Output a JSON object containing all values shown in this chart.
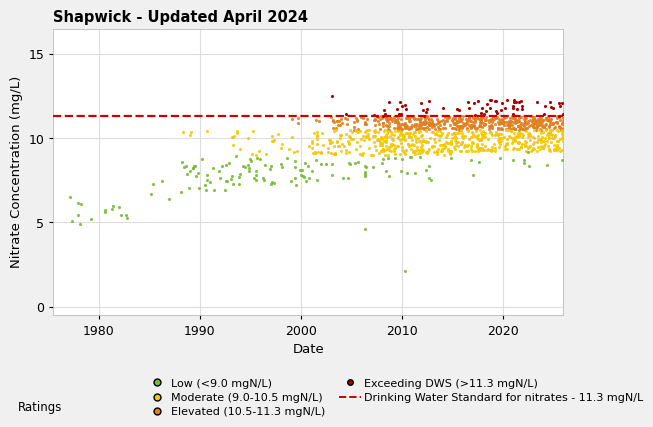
{
  "title": "Shapwick - Updated April 2024",
  "xlabel": "Date",
  "ylabel": "Nitrate Concentration (mg/L)",
  "dws_line": 11.3,
  "dws_label": "Drinking Water Standard for nitrates - 11.3 mgN/L",
  "ylim": [
    -0.5,
    16.5
  ],
  "yticks": [
    0,
    5,
    10,
    15
  ],
  "xlim": [
    1975.5,
    2026
  ],
  "xticks": [
    1980,
    1990,
    2000,
    2010,
    2020
  ],
  "colors": {
    "low": "#77bb33",
    "moderate": "#f5c800",
    "elevated": "#e08020",
    "exceeding": "#aa0000"
  },
  "legend_labels": {
    "low": "Low (<9.0 mgN/L)",
    "moderate": "Moderate (9.0-10.5 mgN/L)",
    "elevated": "Elevated (10.5-11.3 mgN/L)",
    "exceeding": "Exceeding DWS (>11.3 mgN/L)"
  },
  "plot_bg": "#ffffff",
  "fig_bg": "#f0f0f0",
  "grid_color": "#dddddd",
  "title_fontsize": 10.5,
  "axis_label_fontsize": 9.5,
  "tick_fontsize": 9,
  "legend_fontsize": 8,
  "marker_size": 5,
  "exc_marker_size": 5,
  "dws_color": "#cc0000",
  "dws_linewidth": 1.6
}
